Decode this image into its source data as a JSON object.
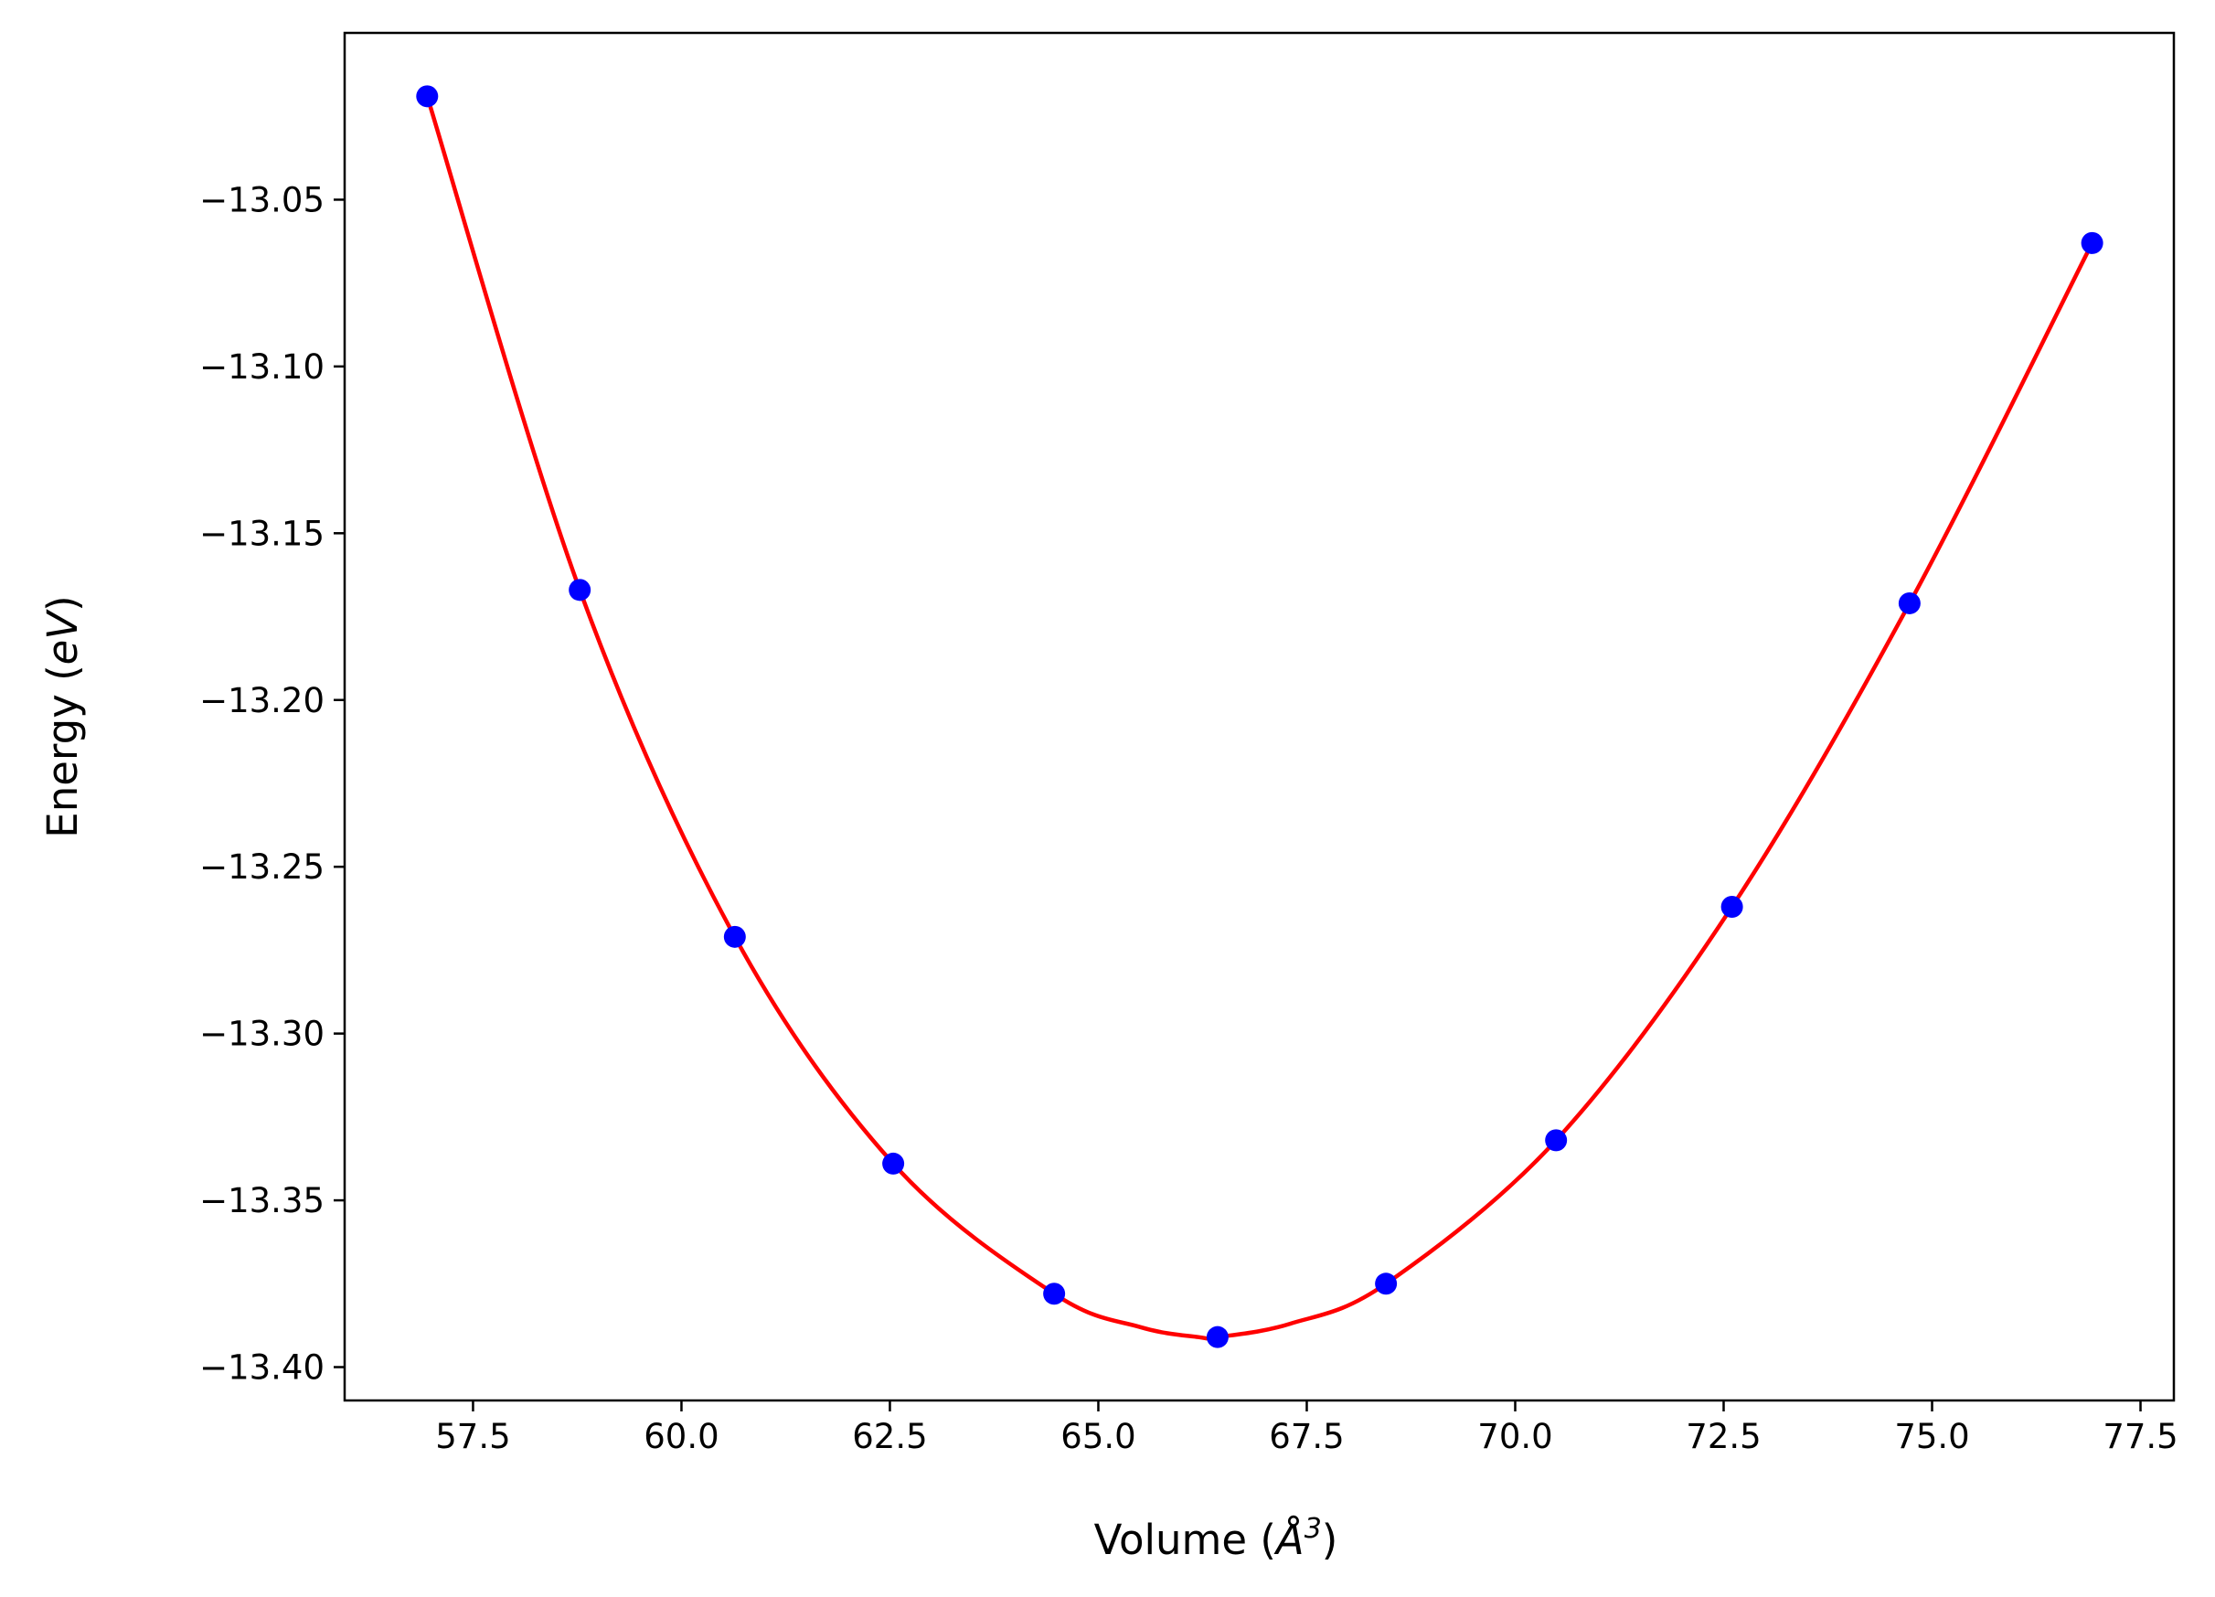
{
  "chart_data": {
    "type": "line",
    "title": "",
    "xlabel": "Volume (",
    "xlabel_symbol": "Å",
    "xlabel_exp": "3",
    "xlabel_close": ")",
    "ylabel": "Energy (",
    "ylabel_unit": "eV",
    "ylabel_close": ")",
    "xlim": [
      55.96,
      77.9
    ],
    "ylim": [
      -13.41,
      -13.0
    ],
    "xticks": [
      57.5,
      60.0,
      62.5,
      65.0,
      67.5,
      70.0,
      72.5,
      75.0,
      77.5
    ],
    "xtick_labels": [
      "57.5",
      "60.0",
      "62.5",
      "65.0",
      "67.5",
      "70.0",
      "72.5",
      "75.0",
      "77.5"
    ],
    "yticks": [
      -13.05,
      -13.1,
      -13.15,
      -13.2,
      -13.25,
      -13.3,
      -13.35,
      -13.4
    ],
    "ytick_labels": [
      "−13.05",
      "−13.10",
      "−13.15",
      "−13.20",
      "−13.25",
      "−13.30",
      "−13.35",
      "−13.40"
    ],
    "grid": false,
    "series": [
      {
        "kind": "points",
        "color": "#0000ff",
        "x": [
          56.95,
          58.78,
          60.64,
          62.54,
          64.47,
          66.43,
          68.45,
          70.49,
          72.6,
          74.73,
          76.92
        ],
        "y": [
          -13.019,
          -13.167,
          -13.271,
          -13.339,
          -13.378,
          -13.391,
          -13.375,
          -13.332,
          -13.262,
          -13.171,
          -13.063
        ]
      },
      {
        "kind": "fit-curve",
        "color": "#ff0000",
        "x": [
          56.95,
          58.78,
          60.64,
          62.54,
          64.47,
          65.5,
          66.2,
          66.43,
          67.3,
          68.45,
          70.49,
          72.6,
          74.73,
          76.92
        ],
        "y": [
          -13.019,
          -13.167,
          -13.271,
          -13.339,
          -13.378,
          -13.388,
          -13.391,
          -13.391,
          -13.387,
          -13.375,
          -13.332,
          -13.262,
          -13.171,
          -13.063
        ]
      }
    ]
  }
}
